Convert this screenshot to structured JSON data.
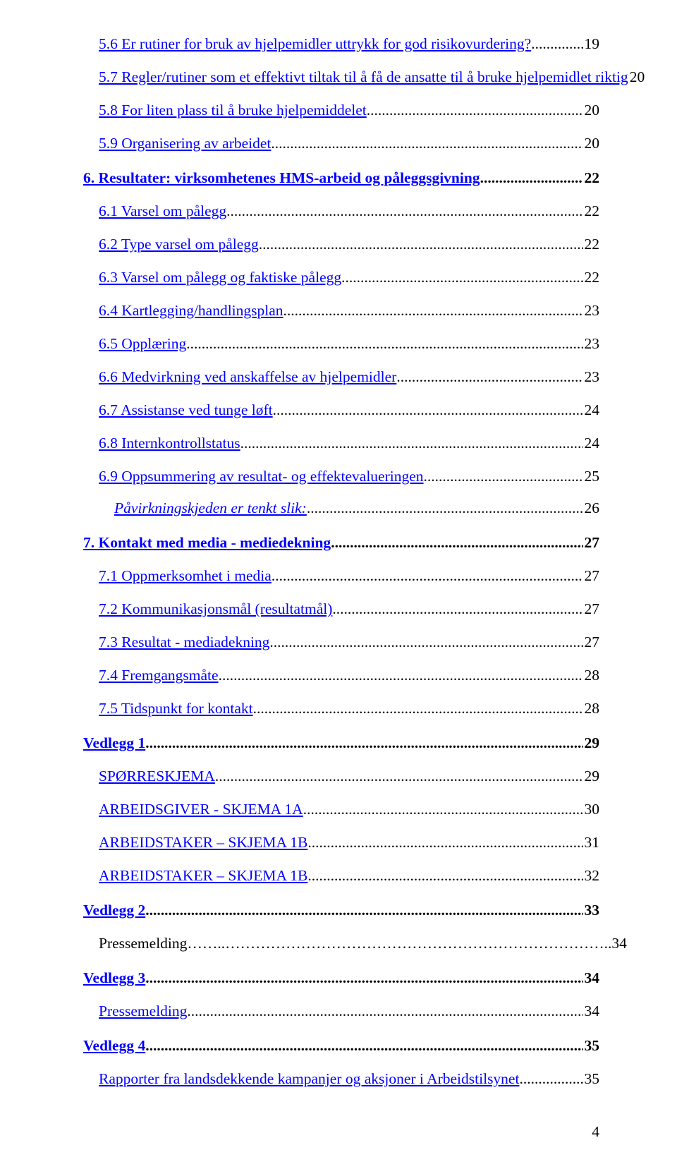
{
  "entries": [
    {
      "level": 2,
      "style": "link",
      "text": "5.6 Er rutiner for bruk av hjelpemidler uttrykk for god risikovurdering?",
      "page": "19",
      "bold": false,
      "first": true
    },
    {
      "level": 2,
      "style": "link",
      "text": "5.7 Regler/rutiner som et effektivt tiltak til å få de ansatte til å bruke hjelpemidlet riktig",
      "page": "20",
      "bold": false
    },
    {
      "level": 2,
      "style": "link",
      "text": "5.8 For liten plass til å bruke hjelpemiddelet",
      "page": "20",
      "bold": false
    },
    {
      "level": 2,
      "style": "link",
      "text": "5.9 Organisering av arbeidet",
      "page": "20",
      "bold": false
    },
    {
      "level": 1,
      "style": "bold",
      "text": "6. Resultater: virksomhetenes HMS-arbeid og påleggsgivning",
      "page": "22",
      "bold": true
    },
    {
      "level": 2,
      "style": "link",
      "text": "6.1 Varsel om pålegg",
      "page": "22",
      "bold": false
    },
    {
      "level": 2,
      "style": "link",
      "text": "6.2 Type varsel om pålegg",
      "page": "22",
      "bold": false
    },
    {
      "level": 2,
      "style": "link",
      "text": "6.3 Varsel om pålegg og faktiske pålegg",
      "page": "22",
      "bold": false
    },
    {
      "level": 2,
      "style": "link",
      "text": "6.4 Kartlegging/handlingsplan",
      "page": "23",
      "bold": false
    },
    {
      "level": 2,
      "style": "link",
      "text": "6.5 Opplæring",
      "page": "23",
      "bold": false
    },
    {
      "level": 2,
      "style": "link",
      "text": "6.6 Medvirkning ved anskaffelse av hjelpemidler",
      "page": "23",
      "bold": false
    },
    {
      "level": 2,
      "style": "link",
      "text": "6.7 Assistanse ved tunge løft",
      "page": "24",
      "bold": false
    },
    {
      "level": 2,
      "style": "link",
      "text": "6.8 Internkontrollstatus",
      "page": "24",
      "bold": false
    },
    {
      "level": 2,
      "style": "link",
      "text": "6.9 Oppsummering av resultat- og effektevalueringen",
      "page": "25",
      "bold": false
    },
    {
      "level": 3,
      "style": "italic",
      "text": "Påvirkningskjeden er tenkt slik:",
      "page": "26",
      "bold": false
    },
    {
      "level": 1,
      "style": "bold",
      "text": "7. Kontakt med media - mediedekning",
      "page": "27",
      "bold": true
    },
    {
      "level": 2,
      "style": "link",
      "text": "7.1 Oppmerksomhet i media",
      "page": "27",
      "bold": false
    },
    {
      "level": 2,
      "style": "link",
      "text": "7.2 Kommunikasjonsmål (resultatmål)",
      "page": "27",
      "bold": false
    },
    {
      "level": 2,
      "style": "link",
      "text": "7.3 Resultat - mediadekning",
      "page": "27",
      "bold": false
    },
    {
      "level": 2,
      "style": "link",
      "text": "7.4 Fremgangsmåte",
      "page": "28",
      "bold": false
    },
    {
      "level": 2,
      "style": "link",
      "text": "7.5 Tidspunkt for kontakt",
      "page": "28",
      "bold": false
    },
    {
      "level": 1,
      "style": "bold",
      "text": "Vedlegg 1",
      "page": "29",
      "bold": true
    },
    {
      "level": 2,
      "style": "link",
      "text": "SPØRRESKJEMA",
      "page": "29",
      "bold": false
    },
    {
      "level": 2,
      "style": "link",
      "text": "ARBEIDSGIVER - SKJEMA 1A",
      "page": "30",
      "bold": false
    },
    {
      "level": 2,
      "style": "link",
      "text": "ARBEIDSTAKER – SKJEMA 1B",
      "page": "31",
      "bold": false
    },
    {
      "level": 2,
      "style": "link",
      "text": "ARBEIDSTAKER – SKJEMA 1B",
      "page": "32",
      "bold": false
    },
    {
      "level": 1,
      "style": "bold",
      "text": "Vedlegg 2",
      "page": "33",
      "bold": true
    },
    {
      "level": 2,
      "style": "plain",
      "text": " Pressemelding……..…………………………………………………………………..34",
      "page": "",
      "bold": false
    },
    {
      "level": 1,
      "style": "bold",
      "text": "Vedlegg 3",
      "page": "34",
      "bold": true
    },
    {
      "level": 2,
      "style": "link",
      "text": "Pressemelding",
      "page": "34",
      "bold": false
    },
    {
      "level": 1,
      "style": "bold",
      "text": "Vedlegg 4",
      "page": "35",
      "bold": true
    },
    {
      "level": 2,
      "style": "link",
      "text": "Rapporter fra landsdekkende kampanjer og aksjoner i Arbeidstilsynet",
      "page": "35",
      "bold": false
    }
  ],
  "pageNumber": "4"
}
